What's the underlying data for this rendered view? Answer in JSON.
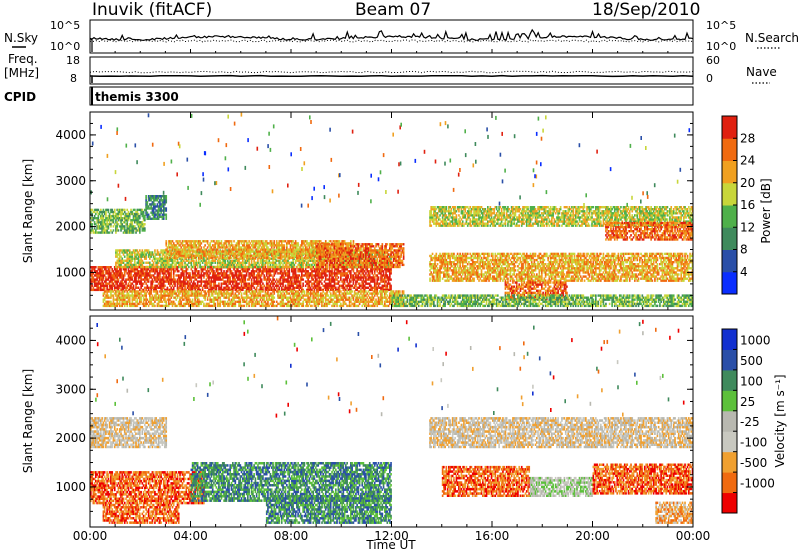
{
  "header": {
    "station": "Inuvik (fitACF)",
    "beam": "Beam 07",
    "date": "18/Sep/2010"
  },
  "colors": {
    "power_scale": [
      "#0a2eff",
      "#2a4fa8",
      "#3f8a5c",
      "#4fb04a",
      "#c8d63a",
      "#f0a020",
      "#f06a10",
      "#e02010"
    ],
    "velocity_scale": [
      "#ee0000",
      "#f06a10",
      "#f0a030",
      "#c8c8c0",
      "#b8b8b0",
      "#5cc03a",
      "#3f8a5c",
      "#2a4fa8",
      "#1230d0"
    ]
  },
  "chart_data": [
    {
      "type": "line",
      "panel": "nsky-nsearch",
      "left_label": "N.Sky",
      "right_label": "N.Search",
      "left_ticks": [
        "10^5",
        "10^0"
      ],
      "right_ticks": [
        "10^5",
        "10^0"
      ],
      "xlim": [
        "00:00",
        "24:00"
      ]
    },
    {
      "type": "line",
      "panel": "freq-nave",
      "left_label": "Freq. [MHz]",
      "right_label": "Nave",
      "left_ticks": [
        "18",
        "8"
      ],
      "right_ticks": [
        "60",
        "0"
      ],
      "freq_value_mhz": 10.5,
      "xlim": [
        "00:00",
        "24:00"
      ]
    },
    {
      "type": "table",
      "panel": "cpid",
      "label": "CPID",
      "program": "themis 3300"
    },
    {
      "type": "heatmap",
      "panel": "power",
      "ylabel": "Slant Range [km]",
      "xlabel": "",
      "ylim": [
        180,
        4500
      ],
      "y_ticks": [
        "1000",
        "2000",
        "3000",
        "4000"
      ],
      "colorbar_label": "Power [dB]",
      "colorbar_ticks": [
        "4",
        "8",
        "12",
        "16",
        "20",
        "24",
        "28"
      ],
      "colorbar_range": [
        0,
        32
      ],
      "bands": [
        {
          "t0": 0.0,
          "t1": 2.2,
          "r0": 1850,
          "r1": 2350,
          "level": 3
        },
        {
          "t0": 2.2,
          "t1": 3.0,
          "r0": 2150,
          "r1": 2650,
          "level": 2
        },
        {
          "t0": 0.0,
          "t1": 12.0,
          "r0": 600,
          "r1": 1100,
          "level": 7
        },
        {
          "t0": 1.0,
          "t1": 12.0,
          "r0": 1100,
          "r1": 1500,
          "level": 4
        },
        {
          "t0": 3.0,
          "t1": 10.5,
          "r0": 1300,
          "r1": 1700,
          "level": 5
        },
        {
          "t0": 9.0,
          "t1": 12.5,
          "r0": 1100,
          "r1": 1600,
          "level": 6
        },
        {
          "t0": 0.5,
          "t1": 12.5,
          "r0": 250,
          "r1": 600,
          "level": 5
        },
        {
          "t0": 13.5,
          "t1": 24.0,
          "r0": 2000,
          "r1": 2450,
          "level": 4
        },
        {
          "t0": 20.5,
          "t1": 24.0,
          "r0": 1700,
          "r1": 2100,
          "level": 6
        },
        {
          "t0": 13.5,
          "t1": 24.0,
          "r0": 800,
          "r1": 1400,
          "level": 5
        },
        {
          "t0": 16.5,
          "t1": 19.0,
          "r0": 400,
          "r1": 800,
          "level": 6
        },
        {
          "t0": 12.0,
          "t1": 24.0,
          "r0": 250,
          "r1": 500,
          "level": 3
        }
      ]
    },
    {
      "type": "heatmap",
      "panel": "velocity",
      "ylabel": "Slant Range [km]",
      "xlabel": "Time UT",
      "ylim": [
        180,
        4500
      ],
      "y_ticks": [
        "1000",
        "2000",
        "3000",
        "4000"
      ],
      "x_ticks": [
        "00:00",
        "04:00",
        "08:00",
        "12:00",
        "16:00",
        "20:00",
        "00:00"
      ],
      "colorbar_label": "Velocity [m s^-1]",
      "colorbar_ticks": [
        "1000",
        "500",
        "100",
        "25",
        "-25",
        "-100",
        "-500",
        "-1000"
      ],
      "bands": [
        {
          "t0": 0.0,
          "t1": 3.0,
          "r0": 1800,
          "r1": 2400,
          "level": 3
        },
        {
          "t0": 0.0,
          "t1": 4.5,
          "r0": 650,
          "r1": 1300,
          "level": 1
        },
        {
          "t0": 4.0,
          "t1": 12.0,
          "r0": 700,
          "r1": 1500,
          "level": 6
        },
        {
          "t0": 7.0,
          "t1": 12.0,
          "r0": 250,
          "r1": 800,
          "level": 6
        },
        {
          "t0": 0.5,
          "t1": 3.5,
          "r0": 250,
          "r1": 650,
          "level": 1
        },
        {
          "t0": 13.5,
          "t1": 24.0,
          "r0": 1800,
          "r1": 2400,
          "level": 3
        },
        {
          "t0": 14.0,
          "t1": 17.5,
          "r0": 800,
          "r1": 1400,
          "level": 1
        },
        {
          "t0": 17.5,
          "t1": 20.0,
          "r0": 800,
          "r1": 1200,
          "level": 4
        },
        {
          "t0": 20.0,
          "t1": 24.0,
          "r0": 850,
          "r1": 1450,
          "level": 1
        },
        {
          "t0": 22.5,
          "t1": 24.0,
          "r0": 250,
          "r1": 700,
          "level": 2
        }
      ]
    }
  ]
}
